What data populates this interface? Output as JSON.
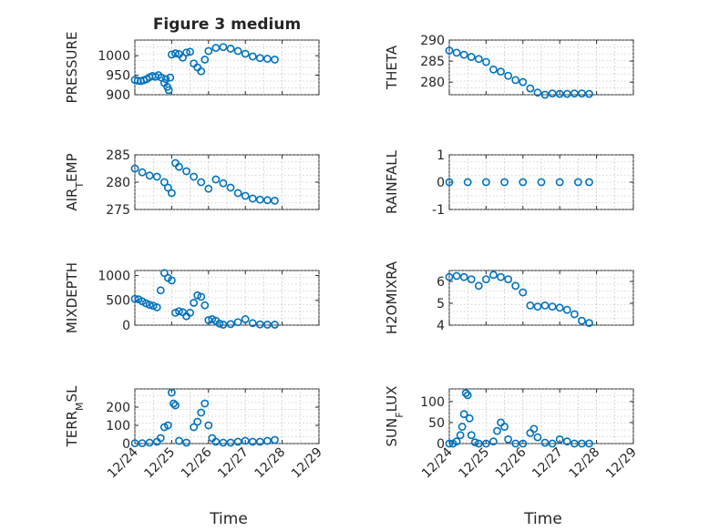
{
  "figure": {
    "title": "Figure 3 medium",
    "marker_color": "#0072BD",
    "grid": "on (dotted, major and minor)"
  },
  "chart_data": [
    {
      "type": "scatter",
      "ylabel": "PRESSURE",
      "title": "Figure 3 medium",
      "xlim": [
        "12/24",
        "12/29"
      ],
      "ylim": [
        900,
        1040
      ],
      "yticks": [
        900,
        950,
        1000
      ],
      "x": [
        0,
        0.08,
        0.16,
        0.24,
        0.32,
        0.4,
        0.48,
        0.56,
        0.64,
        0.72,
        0.8,
        0.84,
        0.88,
        0.92,
        0.96,
        1.0,
        1.1,
        1.2,
        1.3,
        1.4,
        1.5,
        1.6,
        1.7,
        1.8,
        1.9,
        2.0,
        2.2,
        2.4,
        2.6,
        2.8,
        3.0,
        3.2,
        3.4,
        3.6,
        3.8
      ],
      "values": [
        938,
        936,
        935,
        937,
        940,
        945,
        948,
        946,
        950,
        944,
        930,
        940,
        920,
        912,
        944,
        1003,
        1006,
        1004,
        995,
        1008,
        1010,
        980,
        970,
        960,
        990,
        1012,
        1020,
        1022,
        1018,
        1012,
        1005,
        998,
        994,
        992,
        990
      ]
    },
    {
      "type": "scatter",
      "ylabel": "THETA",
      "xlim": [
        "12/24",
        "12/29"
      ],
      "ylim": [
        277,
        290
      ],
      "yticks": [
        280,
        285,
        290
      ],
      "x": [
        0,
        0.2,
        0.4,
        0.6,
        0.8,
        1.0,
        1.2,
        1.4,
        1.6,
        1.8,
        2.0,
        2.2,
        2.4,
        2.6,
        2.8,
        3.0,
        3.2,
        3.4,
        3.6,
        3.8
      ],
      "values": [
        287.5,
        287,
        286.5,
        286,
        285.5,
        284.8,
        283,
        282.5,
        281.5,
        280.5,
        280,
        278.5,
        277.5,
        277,
        277.3,
        277.2,
        277.2,
        277.3,
        277.3,
        277.2
      ]
    },
    {
      "type": "scatter",
      "ylabel": "AIR_TEMP",
      "xlim": [
        "12/24",
        "12/29"
      ],
      "ylim": [
        275,
        285
      ],
      "yticks": [
        275,
        280,
        285
      ],
      "x": [
        0,
        0.2,
        0.4,
        0.6,
        0.8,
        0.9,
        1.0,
        1.1,
        1.2,
        1.4,
        1.6,
        1.8,
        2.0,
        2.2,
        2.4,
        2.6,
        2.8,
        3.0,
        3.2,
        3.4,
        3.6,
        3.8
      ],
      "values": [
        282.5,
        281.8,
        281.2,
        281,
        280,
        279,
        278,
        283.5,
        282.8,
        282,
        281,
        280,
        278.8,
        280.5,
        279.8,
        279,
        278,
        277.5,
        277,
        276.8,
        276.7,
        276.6
      ]
    },
    {
      "type": "scatter",
      "ylabel": "RAINFALL",
      "xlim": [
        "12/24",
        "12/29"
      ],
      "ylim": [
        -1,
        1
      ],
      "yticks": [
        -1,
        0,
        1
      ],
      "x": [
        0,
        0.5,
        1.0,
        1.5,
        2.0,
        2.5,
        3.0,
        3.5,
        3.8
      ],
      "values": [
        0,
        0,
        0,
        0,
        0,
        0,
        0,
        0,
        0
      ]
    },
    {
      "type": "scatter",
      "ylabel": "MIXDEPTH",
      "xlim": [
        "12/24",
        "12/29"
      ],
      "ylim": [
        0,
        1100
      ],
      "yticks": [
        0,
        500,
        1000
      ],
      "x": [
        0,
        0.1,
        0.2,
        0.3,
        0.4,
        0.5,
        0.6,
        0.7,
        0.8,
        0.9,
        1.0,
        1.1,
        1.2,
        1.3,
        1.4,
        1.5,
        1.6,
        1.7,
        1.8,
        1.9,
        2.0,
        2.1,
        2.2,
        2.3,
        2.4,
        2.6,
        2.8,
        3.0,
        3.2,
        3.4,
        3.6,
        3.8
      ],
      "values": [
        530,
        520,
        480,
        440,
        410,
        390,
        360,
        700,
        1050,
        950,
        900,
        250,
        280,
        260,
        180,
        250,
        450,
        600,
        570,
        400,
        100,
        120,
        90,
        30,
        10,
        20,
        60,
        120,
        40,
        15,
        10,
        10
      ]
    },
    {
      "type": "scatter",
      "ylabel": "H2OMIXRA",
      "xlim": [
        "12/24",
        "12/29"
      ],
      "ylim": [
        4,
        6.5
      ],
      "yticks": [
        4,
        5,
        6
      ],
      "x": [
        0,
        0.2,
        0.4,
        0.6,
        0.8,
        1.0,
        1.2,
        1.4,
        1.6,
        1.8,
        2.0,
        2.2,
        2.4,
        2.6,
        2.8,
        3.0,
        3.2,
        3.4,
        3.6,
        3.8
      ],
      "values": [
        6.2,
        6.25,
        6.2,
        6.1,
        5.8,
        6.1,
        6.3,
        6.2,
        6.1,
        5.8,
        5.5,
        4.9,
        4.85,
        4.9,
        4.85,
        4.8,
        4.7,
        4.5,
        4.2,
        4.1
      ]
    },
    {
      "type": "scatter",
      "ylabel": "TERR_MSL",
      "xlim": [
        "12/24",
        "12/29"
      ],
      "ylim": [
        0,
        300
      ],
      "yticks": [
        0,
        100,
        200
      ],
      "x": [
        0,
        0.2,
        0.4,
        0.6,
        0.7,
        0.8,
        0.9,
        1.0,
        1.05,
        1.1,
        1.2,
        1.4,
        1.6,
        1.7,
        1.8,
        1.9,
        2.0,
        2.1,
        2.2,
        2.4,
        2.6,
        2.8,
        3.0,
        3.2,
        3.4,
        3.6,
        3.8
      ],
      "values": [
        2,
        2,
        5,
        10,
        30,
        90,
        100,
        280,
        220,
        210,
        15,
        5,
        90,
        120,
        170,
        220,
        100,
        30,
        10,
        5,
        5,
        10,
        15,
        10,
        10,
        15,
        20
      ]
    },
    {
      "type": "scatter",
      "ylabel": "SUN_FLUX",
      "xlim": [
        "12/24",
        "12/29"
      ],
      "ylim": [
        0,
        130
      ],
      "yticks": [
        0,
        50,
        100
      ],
      "x": [
        0,
        0.1,
        0.2,
        0.3,
        0.35,
        0.4,
        0.45,
        0.5,
        0.55,
        0.6,
        0.7,
        0.8,
        1.0,
        1.2,
        1.3,
        1.4,
        1.5,
        1.6,
        1.8,
        2.0,
        2.2,
        2.3,
        2.4,
        2.6,
        2.8,
        3.0,
        3.2,
        3.4,
        3.6,
        3.8
      ],
      "values": [
        0,
        0,
        5,
        20,
        40,
        70,
        120,
        115,
        60,
        20,
        3,
        0,
        0,
        5,
        30,
        50,
        40,
        10,
        0,
        0,
        25,
        35,
        15,
        2,
        0,
        10,
        5,
        0,
        0,
        0
      ]
    }
  ],
  "xticks": [
    "12/24",
    "12/25",
    "12/26",
    "12/27",
    "12/28",
    "12/29"
  ],
  "xlabel": "Time"
}
